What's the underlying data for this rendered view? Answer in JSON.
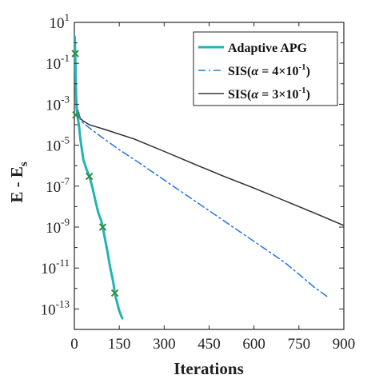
{
  "chart_data": {
    "type": "line",
    "xlabel": "Iterations",
    "ylabel": "E - E",
    "ylabel_sub": "s",
    "xlim": [
      0,
      900
    ],
    "ylim_log10": [
      -14,
      1
    ],
    "y_scale": "log",
    "grid": false,
    "legend_position": "top-right",
    "x_ticks": [
      0,
      150,
      300,
      450,
      600,
      750,
      900
    ],
    "y_ticks": [
      {
        "base": "10",
        "exp": "1"
      },
      {
        "base": "10",
        "exp": "-1"
      },
      {
        "base": "10",
        "exp": "-3"
      },
      {
        "base": "10",
        "exp": "-5"
      },
      {
        "base": "10",
        "exp": "-7"
      },
      {
        "base": "10",
        "exp": "-9"
      },
      {
        "base": "10",
        "exp": "-11"
      },
      {
        "base": "10",
        "exp": "-13"
      }
    ],
    "series": [
      {
        "name": "Adaptive APG",
        "color": "#22b3b3",
        "style": "solid",
        "marker": "x",
        "marker_color": "#3a8a44",
        "x": [
          1,
          2,
          3,
          5,
          6,
          8,
          10,
          15,
          20,
          30,
          40,
          50,
          60,
          70,
          80,
          90,
          95,
          100,
          110,
          120,
          130,
          135,
          140,
          150,
          160
        ],
        "y": [
          2,
          1,
          0.3,
          0.01,
          0.002,
          0.0005,
          0.0003,
          0.0001,
          2e-05,
          2e-06,
          7e-07,
          3e-07,
          9e-08,
          2e-08,
          5e-09,
          2e-09,
          1e-09,
          4e-10,
          7e-11,
          1e-11,
          2e-12,
          6e-13,
          3e-13,
          8e-14,
          3.5e-14
        ],
        "marker_x": [
          3,
          5,
          50,
          95,
          135
        ],
        "marker_y": [
          0.3,
          0.0003,
          3e-07,
          1e-09,
          6e-13
        ]
      },
      {
        "name": "SIS(α = 4×10⁻¹)",
        "label_prefix": "SIS(",
        "label_alpha": "α",
        "label_mid": " = 4",
        "label_times": "×10",
        "label_exp": "-1",
        "label_suffix": ")",
        "color": "#2f7de0",
        "style": "dashdot",
        "x": [
          1,
          2,
          3,
          5,
          8,
          10,
          20,
          30,
          50,
          100,
          150,
          200,
          300,
          400,
          500,
          600,
          700,
          750,
          800,
          850
        ],
        "y": [
          2,
          1,
          0.2,
          0.01,
          0.001,
          0.0005,
          0.00018,
          0.00012,
          7e-05,
          2e-05,
          6e-06,
          2e-06,
          2e-07,
          2e-08,
          2e-09,
          2e-10,
          2e-11,
          5e-12,
          1.2e-12,
          3.5e-13
        ]
      },
      {
        "name": "SIS(α = 3×10⁻¹)",
        "label_prefix": "SIS(",
        "label_alpha": "α",
        "label_mid": " = 3",
        "label_times": "×10",
        "label_exp": "-1",
        "label_suffix": ")",
        "color": "#3a3a3a",
        "style": "solid",
        "x": [
          1,
          2,
          3,
          5,
          8,
          10,
          20,
          30,
          50,
          100,
          200,
          300,
          400,
          500,
          600,
          700,
          800,
          900
        ],
        "y": [
          2,
          1,
          0.2,
          0.01,
          0.0012,
          0.0006,
          0.0002,
          0.00015,
          0.0001,
          6e-05,
          2e-05,
          5e-06,
          1.2e-06,
          3e-07,
          8e-08,
          2e-08,
          5e-09,
          1.2e-09
        ]
      }
    ]
  }
}
